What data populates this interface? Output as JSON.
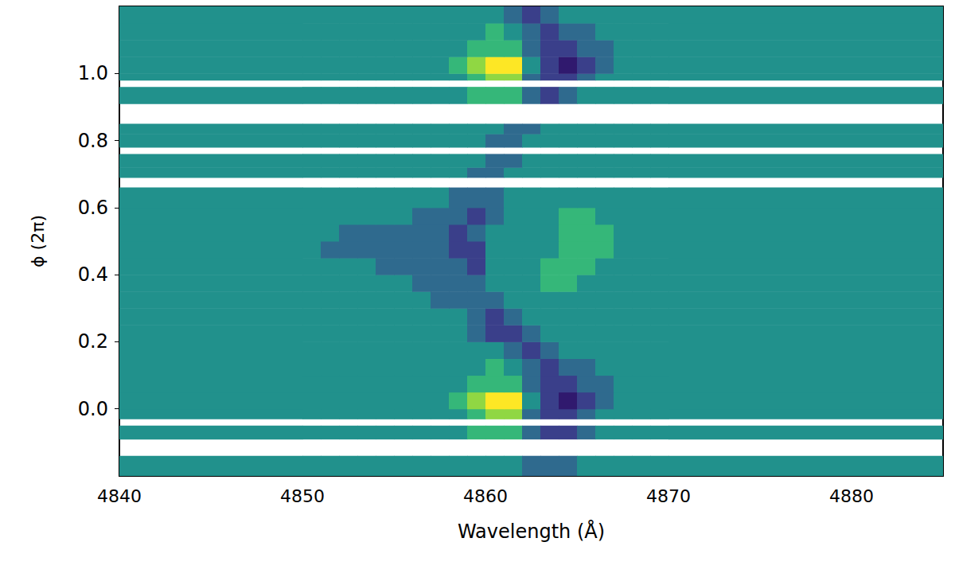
{
  "chart_data": {
    "type": "heatmap",
    "x_label": "Wavelength (Å)",
    "y_label": "ϕ (2π)",
    "xlim": [
      4840,
      4885
    ],
    "xticks": [
      4840,
      4850,
      4860,
      4870,
      4880
    ],
    "ylim": [
      -0.2,
      1.2
    ],
    "yticks": [
      {
        "value": 0,
        "label": "0.0"
      },
      0.2,
      0.4,
      0.6,
      0.8,
      {
        "value": 1,
        "label": "1.0"
      }
    ],
    "grid": false,
    "color_range": [
      -3,
      3
    ],
    "x_edges": [
      4840,
      4850,
      4851,
      4852,
      4853,
      4854,
      4855,
      4856,
      4857,
      4858,
      4859,
      4860,
      4861,
      4862,
      4863,
      4864,
      4865,
      4866,
      4867,
      4868,
      4869,
      4870,
      4885
    ],
    "rows": [
      {
        "phase": [
          -0.2,
          -0.14
        ],
        "values": [
          0,
          0,
          0,
          0,
          0,
          0,
          0,
          0,
          0,
          0,
          0,
          0,
          0,
          -1,
          -1,
          -1,
          0,
          0,
          0,
          0,
          0,
          0
        ]
      },
      {
        "phase": [
          -0.14,
          -0.09
        ],
        "values": null
      },
      {
        "phase": [
          -0.09,
          -0.05
        ],
        "values": [
          0,
          0,
          0,
          0,
          0,
          0,
          0,
          0,
          0,
          0,
          1,
          1,
          1,
          -1,
          -2,
          -2,
          -1,
          0,
          0,
          0,
          0,
          0
        ]
      },
      {
        "phase": [
          -0.05,
          -0.03
        ],
        "values": null
      },
      {
        "phase": [
          -0.03,
          0.0
        ],
        "values": [
          0,
          0,
          0,
          0,
          0,
          0,
          0,
          0,
          0,
          0,
          1,
          2,
          2,
          -1,
          -2,
          -2,
          -1,
          0,
          0,
          0,
          0,
          0
        ]
      },
      {
        "phase": [
          0.0,
          0.05
        ],
        "values": [
          0,
          0,
          0,
          0,
          0,
          0,
          0,
          0,
          0,
          1,
          2,
          3,
          3,
          0,
          -2,
          -3,
          -2,
          -1,
          0,
          0,
          0,
          0
        ]
      },
      {
        "phase": [
          0.05,
          0.1
        ],
        "values": [
          0,
          0,
          0,
          0,
          0,
          0,
          0,
          0,
          0,
          0,
          1,
          1,
          1,
          -1,
          -2,
          -2,
          -1,
          -1,
          0,
          0,
          0,
          0
        ]
      },
      {
        "phase": [
          0.1,
          0.15
        ],
        "values": [
          0,
          0,
          0,
          0,
          0,
          0,
          0,
          0,
          0,
          0,
          0,
          1,
          0,
          -1,
          -2,
          -1,
          -1,
          0,
          0,
          0,
          0,
          0
        ]
      },
      {
        "phase": [
          0.15,
          0.2
        ],
        "values": [
          0,
          0,
          0,
          0,
          0,
          0,
          0,
          0,
          0,
          0,
          0,
          0,
          -1,
          -2,
          -1,
          0,
          0,
          0,
          0,
          0,
          0,
          0
        ]
      },
      {
        "phase": [
          0.2,
          0.25
        ],
        "values": [
          0,
          0,
          0,
          0,
          0,
          0,
          0,
          0,
          0,
          0,
          -1,
          -2,
          -2,
          -1,
          0,
          0,
          0,
          0,
          0,
          0,
          0,
          0
        ]
      },
      {
        "phase": [
          0.25,
          0.3
        ],
        "values": [
          0,
          0,
          0,
          0,
          0,
          0,
          0,
          0,
          0,
          0,
          -1,
          -2,
          -1,
          0,
          0,
          0,
          0,
          0,
          0,
          0,
          0,
          0
        ]
      },
      {
        "phase": [
          0.3,
          0.35
        ],
        "values": [
          0,
          0,
          0,
          0,
          0,
          0,
          0,
          0,
          -1,
          -1,
          -1,
          -1,
          0,
          0,
          0,
          0,
          0,
          0,
          0,
          0,
          0,
          0
        ]
      },
      {
        "phase": [
          0.35,
          0.4
        ],
        "values": [
          0,
          0,
          0,
          0,
          0,
          0,
          0,
          -1,
          -1,
          -1,
          -1,
          0,
          0,
          0,
          1,
          1,
          0,
          0,
          0,
          0,
          0,
          0
        ]
      },
      {
        "phase": [
          0.4,
          0.45
        ],
        "values": [
          0,
          0,
          0,
          0,
          0,
          -1,
          -1,
          -1,
          -1,
          -1,
          -2,
          0,
          0,
          0,
          1,
          1,
          1,
          0,
          0,
          0,
          0,
          0
        ]
      },
      {
        "phase": [
          0.45,
          0.5
        ],
        "values": [
          0,
          0,
          -1,
          -1,
          -1,
          -1,
          -1,
          -1,
          -1,
          -2,
          -2,
          0,
          0,
          0,
          0,
          1,
          1,
          1,
          0,
          0,
          0,
          0
        ]
      },
      {
        "phase": [
          0.5,
          0.55
        ],
        "values": [
          0,
          0,
          0,
          -1,
          -1,
          -1,
          -1,
          -1,
          -1,
          -2,
          -1,
          0,
          0,
          0,
          0,
          1,
          1,
          1,
          0,
          0,
          0,
          0
        ]
      },
      {
        "phase": [
          0.55,
          0.6
        ],
        "values": [
          0,
          0,
          0,
          0,
          0,
          0,
          0,
          -1,
          -1,
          -1,
          -2,
          -1,
          0,
          0,
          0,
          1,
          1,
          0,
          0,
          0,
          0,
          0
        ]
      },
      {
        "phase": [
          0.6,
          0.66
        ],
        "values": [
          0,
          0,
          0,
          0,
          0,
          0,
          0,
          0,
          0,
          -1,
          -1,
          -1,
          0,
          0,
          0,
          0,
          0,
          0,
          0,
          0,
          0,
          0
        ]
      },
      {
        "phase": [
          0.66,
          0.69
        ],
        "values": null
      },
      {
        "phase": [
          0.69,
          0.72
        ],
        "values": [
          0,
          0,
          0,
          0,
          0,
          0,
          0,
          0,
          0,
          0,
          -1,
          -1,
          0,
          0,
          0,
          0,
          0,
          0,
          0,
          0,
          0,
          0
        ]
      },
      {
        "phase": [
          0.72,
          0.76
        ],
        "values": [
          0,
          0,
          0,
          0,
          0,
          0,
          0,
          0,
          0,
          0,
          0,
          -1,
          -1,
          0,
          0,
          0,
          0,
          0,
          0,
          0,
          0,
          0
        ]
      },
      {
        "phase": [
          0.76,
          0.78
        ],
        "values": null
      },
      {
        "phase": [
          0.78,
          0.82
        ],
        "values": [
          0,
          0,
          0,
          0,
          0,
          0,
          0,
          0,
          0,
          0,
          0,
          -1,
          -1,
          0,
          0,
          0,
          0,
          0,
          0,
          0,
          0,
          0
        ]
      },
      {
        "phase": [
          0.82,
          0.85
        ],
        "values": [
          0,
          0,
          0,
          0,
          0,
          0,
          0,
          0,
          0,
          0,
          0,
          0,
          -1,
          -1,
          0,
          0,
          0,
          0,
          0,
          0,
          0,
          0
        ]
      },
      {
        "phase": [
          0.85,
          0.91
        ],
        "values": null
      },
      {
        "phase": [
          0.91,
          0.96
        ],
        "values": [
          0,
          0,
          0,
          0,
          0,
          0,
          0,
          0,
          0,
          0,
          1,
          1,
          1,
          -1,
          -2,
          -1,
          0,
          0,
          0,
          0,
          0,
          0
        ]
      },
      {
        "phase": [
          0.96,
          0.98
        ],
        "values": null
      },
      {
        "phase": [
          0.98,
          1.0
        ],
        "values": [
          0,
          0,
          0,
          0,
          0,
          0,
          0,
          0,
          0,
          0,
          1,
          2,
          2,
          -1,
          -2,
          -2,
          -1,
          0,
          0,
          0,
          0,
          0
        ]
      },
      {
        "phase": [
          1.0,
          1.05
        ],
        "values": [
          0,
          0,
          0,
          0,
          0,
          0,
          0,
          0,
          0,
          1,
          2,
          3,
          3,
          0,
          -2,
          -3,
          -2,
          -1,
          0,
          0,
          0,
          0
        ]
      },
      {
        "phase": [
          1.05,
          1.1
        ],
        "values": [
          0,
          0,
          0,
          0,
          0,
          0,
          0,
          0,
          0,
          0,
          1,
          1,
          1,
          -1,
          -2,
          -2,
          -1,
          -1,
          0,
          0,
          0,
          0
        ]
      },
      {
        "phase": [
          1.1,
          1.15
        ],
        "values": [
          0,
          0,
          0,
          0,
          0,
          0,
          0,
          0,
          0,
          0,
          0,
          1,
          0,
          -1,
          -2,
          -1,
          -1,
          0,
          0,
          0,
          0,
          0
        ]
      },
      {
        "phase": [
          1.15,
          1.2
        ],
        "values": [
          0,
          0,
          0,
          0,
          0,
          0,
          0,
          0,
          0,
          0,
          0,
          0,
          -1,
          -2,
          -1,
          0,
          0,
          0,
          0,
          0,
          0,
          0
        ]
      }
    ]
  }
}
